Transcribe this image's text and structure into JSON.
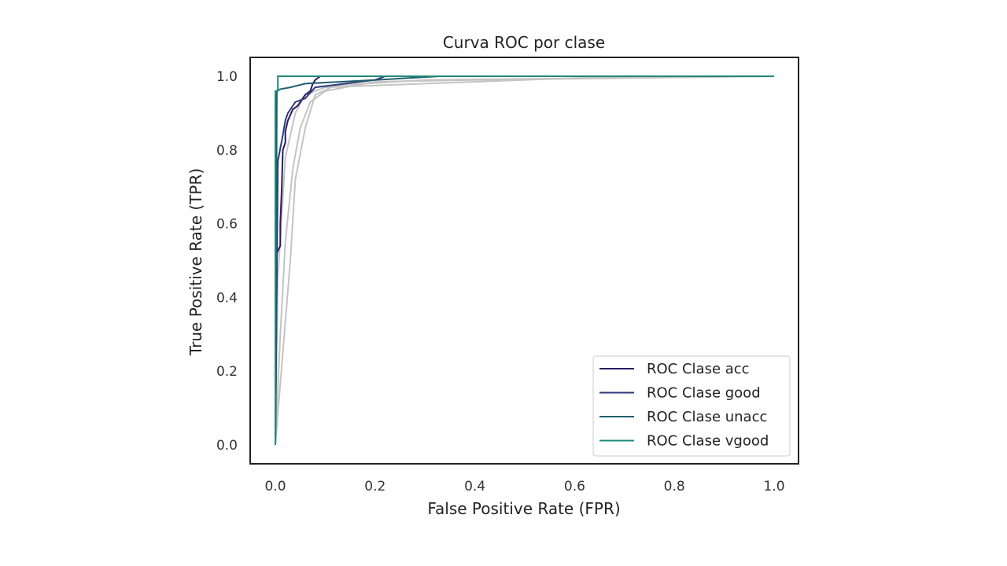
{
  "chart_data": {
    "type": "line",
    "title": "Curva ROC por clase",
    "xlabel": "False Positive Rate (FPR)",
    "ylabel": "True Positive Rate (TPR)",
    "xlim": [
      -0.05,
      1.05
    ],
    "ylim": [
      -0.05,
      1.05
    ],
    "xticks": [
      "0.0",
      "0.2",
      "0.4",
      "0.6",
      "0.8",
      "1.0"
    ],
    "yticks": [
      "0.0",
      "0.2",
      "0.4",
      "0.6",
      "0.8",
      "1.0"
    ],
    "grid": false,
    "legend_position": "lower-right",
    "series": [
      {
        "name": "ROC Clase acc",
        "color": "#2a1a5e",
        "points": [
          [
            0,
            0
          ],
          [
            0.003,
            0.52
          ],
          [
            0.01,
            0.54
          ],
          [
            0.01,
            0.6
          ],
          [
            0.013,
            0.7
          ],
          [
            0.015,
            0.8
          ],
          [
            0.02,
            0.82
          ],
          [
            0.02,
            0.85
          ],
          [
            0.025,
            0.88
          ],
          [
            0.035,
            0.91
          ],
          [
            0.045,
            0.92
          ],
          [
            0.06,
            0.95
          ],
          [
            0.07,
            0.96
          ],
          [
            0.075,
            0.98
          ],
          [
            0.08,
            0.99
          ],
          [
            0.09,
            1.0
          ],
          [
            1.0,
            1.0
          ]
        ]
      },
      {
        "name": "ROC Clase good",
        "color": "#2f3a7a",
        "points": [
          [
            0,
            0
          ],
          [
            0.005,
            0.77
          ],
          [
            0.015,
            0.84
          ],
          [
            0.02,
            0.88
          ],
          [
            0.025,
            0.9
          ],
          [
            0.04,
            0.93
          ],
          [
            0.06,
            0.94
          ],
          [
            0.08,
            0.97
          ],
          [
            0.2,
            0.99
          ],
          [
            0.22,
            1.0
          ],
          [
            1.0,
            1.0
          ]
        ]
      },
      {
        "name": "ROC Clase unacc",
        "color": "#1f5f6e",
        "points": [
          [
            0,
            0
          ],
          [
            0.003,
            0.96
          ],
          [
            0.01,
            0.965
          ],
          [
            0.03,
            0.97
          ],
          [
            0.06,
            0.98
          ],
          [
            0.2,
            0.99
          ],
          [
            0.33,
            1.0
          ],
          [
            1.0,
            1.0
          ]
        ]
      },
      {
        "name": "ROC Clase vgood",
        "color": "#1e8a7a",
        "points": [
          [
            0,
            0
          ],
          [
            0.0,
            0.96
          ],
          [
            0.005,
            0.96
          ],
          [
            0.005,
            1.0
          ],
          [
            1.0,
            1.0
          ]
        ]
      }
    ],
    "gray_points": [
      [
        [
          0,
          0
        ],
        [
          0.01,
          0.3
        ],
        [
          0.02,
          0.55
        ],
        [
          0.035,
          0.75
        ],
        [
          0.05,
          0.86
        ],
        [
          0.07,
          0.93
        ],
        [
          0.1,
          0.96
        ],
        [
          0.2,
          0.985
        ],
        [
          0.4,
          0.99
        ],
        [
          1.0,
          1.0
        ]
      ],
      [
        [
          0,
          0
        ],
        [
          0.015,
          0.25
        ],
        [
          0.03,
          0.5
        ],
        [
          0.04,
          0.72
        ],
        [
          0.06,
          0.86
        ],
        [
          0.08,
          0.95
        ],
        [
          0.12,
          0.975
        ],
        [
          0.3,
          0.99
        ],
        [
          1.0,
          1.0
        ]
      ],
      [
        [
          0,
          0
        ],
        [
          0.005,
          0.45
        ],
        [
          0.02,
          0.78
        ],
        [
          0.04,
          0.9
        ],
        [
          0.06,
          0.95
        ],
        [
          0.1,
          0.97
        ],
        [
          0.3,
          0.98
        ],
        [
          0.6,
          0.995
        ],
        [
          1.0,
          1.0
        ]
      ]
    ]
  }
}
